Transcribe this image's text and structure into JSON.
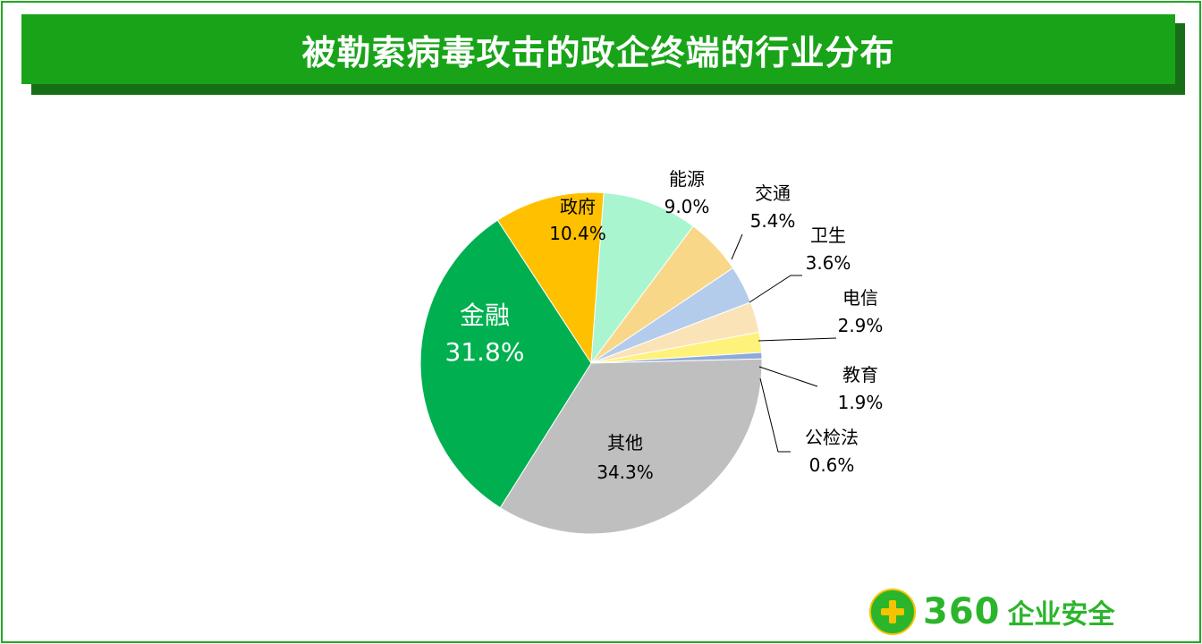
{
  "title": "被勒索病毒攻击的政企终端的行业分布",
  "logo": {
    "number": "360",
    "text": "企业安全"
  },
  "chart_data": {
    "type": "pie",
    "title": "被勒索病毒攻击的政企终端的行业分布",
    "unit": "%",
    "slices": [
      {
        "name": "政府",
        "value": 10.4,
        "label": "10.4%",
        "color": "#ffc000"
      },
      {
        "name": "能源",
        "value": 9.0,
        "label": "9.0%",
        "color": "#a9f5d0"
      },
      {
        "name": "交通",
        "value": 5.4,
        "label": "5.4%",
        "color": "#f8d888"
      },
      {
        "name": "卫生",
        "value": 3.6,
        "label": "3.6%",
        "color": "#b4ccec"
      },
      {
        "name": "电信",
        "value": 2.9,
        "label": "2.9%",
        "color": "#fbe3b8"
      },
      {
        "name": "教育",
        "value": 1.9,
        "label": "1.9%",
        "color": "#fff27a"
      },
      {
        "name": "公检法",
        "value": 0.6,
        "label": "0.6%",
        "color": "#8eaadb"
      },
      {
        "name": "其他",
        "value": 34.3,
        "label": "34.3%",
        "color": "#bfbfbf"
      },
      {
        "name": "金融",
        "value": 31.8,
        "label": "31.8%",
        "color": "#00b050"
      }
    ],
    "legend": "none"
  }
}
